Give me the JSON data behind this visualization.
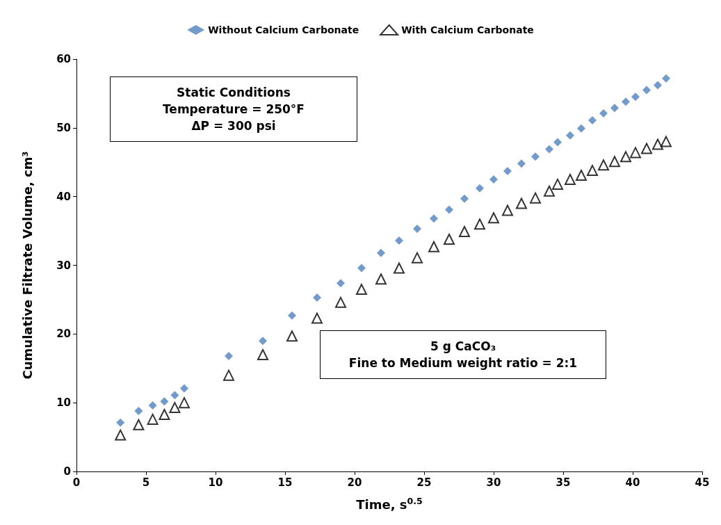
{
  "chart_data": {
    "type": "scatter",
    "xlabel": "Time, s$^{0.5}$",
    "ylabel": "Cumulative Filtrate Volume, cm³",
    "xlim": [
      0,
      45
    ],
    "xticks": [
      0,
      5,
      10,
      15,
      20,
      25,
      30,
      35,
      40,
      45
    ],
    "ylim": [
      0,
      60
    ],
    "yticks": [
      0,
      10,
      20,
      30,
      40,
      50,
      60
    ],
    "grid": false,
    "legend": "top",
    "annotations": [
      "Static Conditions\nTemperature = 250°F\nΔP = 300 psi",
      "5 g CaCO₃\nFine to Medium weight ratio = 2:1"
    ],
    "x": [
      3.16,
      4.47,
      5.48,
      6.32,
      7.07,
      7.75,
      10.95,
      13.4,
      15.5,
      17.3,
      19,
      20.5,
      21.9,
      23.2,
      24.5,
      25.7,
      26.8,
      27.9,
      29,
      30,
      31,
      32,
      33,
      34,
      34.6,
      35.5,
      36.3,
      37.1,
      37.9,
      38.7,
      39.5,
      40.2,
      41,
      41.8,
      42.4
    ],
    "series": [
      {
        "name": "Without Calcium Carbonate",
        "color": "#4f81bd",
        "marker": "diamond",
        "values": [
          7.1,
          8.8,
          9.6,
          10.2,
          11.1,
          12.1,
          16.8,
          19.0,
          22.7,
          25.3,
          27.4,
          29.6,
          31.8,
          33.6,
          35.3,
          36.8,
          38.1,
          39.7,
          41.2,
          42.5,
          43.7,
          44.8,
          45.8,
          46.9,
          47.9,
          48.9,
          49.9,
          51.1,
          52.1,
          52.9,
          53.8,
          54.5,
          55.5,
          56.2,
          57.2
        ]
      },
      {
        "name": "With Calcium Carbonate",
        "color": "#000000",
        "marker": "triangle",
        "values": [
          5.3,
          6.8,
          7.6,
          8.3,
          9.3,
          10.0,
          14.0,
          17.0,
          19.7,
          22.3,
          24.6,
          26.5,
          28.0,
          29.6,
          31.1,
          32.7,
          33.8,
          34.9,
          36.0,
          36.9,
          38.0,
          39.0,
          39.8,
          40.8,
          41.8,
          42.5,
          43.1,
          43.8,
          44.6,
          45.1,
          45.8,
          46.4,
          47.0,
          47.6,
          48.0
        ]
      }
    ]
  }
}
